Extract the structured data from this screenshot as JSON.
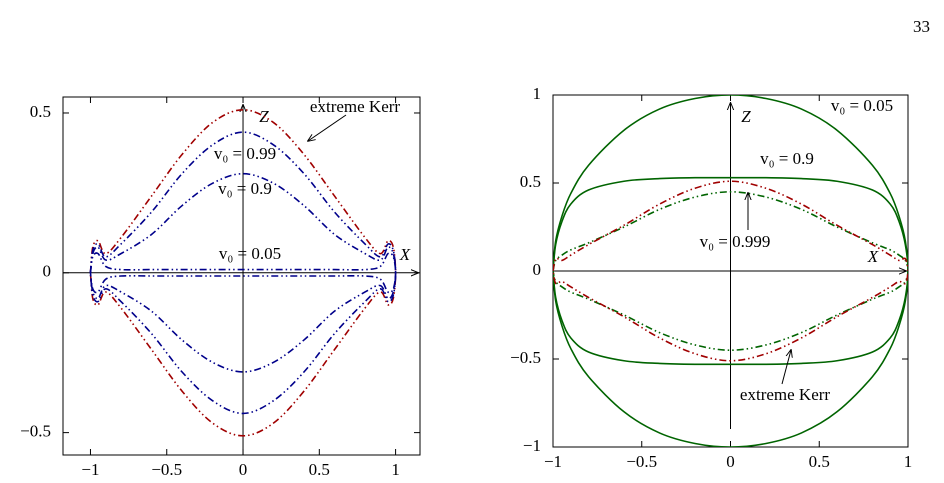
{
  "page_number": "33",
  "chart_data": [
    {
      "type": "line",
      "x": [
        -1,
        -0.985,
        -0.95,
        -0.9,
        -0.8,
        -0.6,
        -0.4,
        -0.2,
        0,
        0.2,
        0.4,
        0.6,
        0.8,
        0.9,
        0.95,
        0.985,
        1,
        0.985,
        0.95,
        0.9,
        0.8,
        0.6,
        0.4,
        0.2,
        0,
        -0.2,
        -0.4,
        -0.6,
        -0.8,
        -0.9,
        -0.95,
        -0.985,
        -1
      ],
      "xlim": [
        -1.18,
        1.16
      ],
      "ylim": [
        -0.57,
        0.55
      ],
      "xticks": [
        {
          "value": -1,
          "label": "−1"
        },
        {
          "value": -0.5,
          "label": "−0.5"
        },
        0,
        0.5,
        1
      ],
      "yticks": [
        {
          "value": -0.5,
          "label": "−0.5"
        },
        0,
        0.5
      ],
      "x_label": "X",
      "y_label": "Z",
      "series": [
        {
          "name": "extreme Kerr",
          "color": "#a00000",
          "linestyle": "dash-dot-dot",
          "values": [
            0,
            0.08,
            0.1,
            0.06,
            0.11,
            0.24,
            0.37,
            0.47,
            0.51,
            0.47,
            0.37,
            0.24,
            0.11,
            0.06,
            0.1,
            0.08,
            0,
            -0.08,
            -0.1,
            -0.06,
            -0.11,
            -0.24,
            -0.37,
            -0.47,
            -0.51,
            -0.47,
            -0.37,
            -0.24,
            -0.11,
            -0.06,
            -0.1,
            -0.08,
            0
          ]
        },
        {
          "name": "v₀ = 0.99",
          "color": "#00008b",
          "linestyle": "dash-dot-dot",
          "values": [
            0,
            0.07,
            0.09,
            0.05,
            0.09,
            0.19,
            0.31,
            0.4,
            0.44,
            0.4,
            0.31,
            0.19,
            0.09,
            0.05,
            0.09,
            0.07,
            0,
            -0.07,
            -0.09,
            -0.05,
            -0.09,
            -0.19,
            -0.31,
            -0.4,
            -0.44,
            -0.4,
            -0.31,
            -0.19,
            -0.09,
            -0.05,
            -0.09,
            -0.07,
            0
          ]
        },
        {
          "name": "v₀ = 0.9",
          "color": "#00008b",
          "linestyle": "dash-dot-dot",
          "values": [
            0,
            0.06,
            0.08,
            0.04,
            0.06,
            0.12,
            0.21,
            0.28,
            0.31,
            0.28,
            0.21,
            0.12,
            0.06,
            0.04,
            0.08,
            0.06,
            0,
            -0.06,
            -0.08,
            -0.04,
            -0.06,
            -0.12,
            -0.21,
            -0.28,
            -0.31,
            -0.28,
            -0.21,
            -0.12,
            -0.06,
            -0.04,
            -0.08,
            -0.06,
            0
          ]
        },
        {
          "name": "v₀ = 0.05",
          "color": "#00008b",
          "linestyle": "dash-dot-dot",
          "values": [
            0,
            0.05,
            0.06,
            0.02,
            0.01,
            0.01,
            0.01,
            0.01,
            0.01,
            0.01,
            0.01,
            0.01,
            0.01,
            0.02,
            0.06,
            0.05,
            0,
            -0.05,
            -0.06,
            -0.02,
            -0.01,
            -0.01,
            -0.01,
            -0.01,
            -0.01,
            -0.01,
            -0.01,
            -0.01,
            -0.01,
            -0.02,
            -0.06,
            -0.05,
            0
          ]
        }
      ]
    },
    {
      "type": "line",
      "x": [
        -1,
        -0.985,
        -0.95,
        -0.9,
        -0.8,
        -0.6,
        -0.4,
        -0.2,
        0,
        0.2,
        0.4,
        0.6,
        0.8,
        0.9,
        0.95,
        0.985,
        1,
        0.985,
        0.95,
        0.9,
        0.8,
        0.6,
        0.4,
        0.2,
        0,
        -0.2,
        -0.4,
        -0.6,
        -0.8,
        -0.9,
        -0.95,
        -0.985,
        -1
      ],
      "xlim": [
        -1,
        1
      ],
      "ylim": [
        -1,
        1
      ],
      "xticks": [
        {
          "value": -1,
          "label": "−1"
        },
        {
          "value": -0.5,
          "label": "−0.5"
        },
        0,
        0.5,
        1
      ],
      "yticks": [
        {
          "value": -1,
          "label": "−1"
        },
        {
          "value": -0.5,
          "label": "−0.5"
        },
        0,
        0.5,
        1
      ],
      "x_label": "X",
      "y_label": "Z",
      "series": [
        {
          "name": "v₀ = 0.05",
          "color": "#006400",
          "linestyle": "solid",
          "values": [
            0,
            0.17,
            0.31,
            0.44,
            0.6,
            0.8,
            0.92,
            0.98,
            1,
            0.98,
            0.92,
            0.8,
            0.6,
            0.44,
            0.31,
            0.17,
            0,
            -0.17,
            -0.31,
            -0.44,
            -0.6,
            -0.8,
            -0.92,
            -0.98,
            -1,
            -0.98,
            -0.92,
            -0.8,
            -0.6,
            -0.44,
            -0.31,
            -0.17,
            0
          ]
        },
        {
          "name": "v₀ = 0.9",
          "color": "#006400",
          "linestyle": "solid",
          "values": [
            0,
            0.15,
            0.28,
            0.38,
            0.46,
            0.51,
            0.525,
            0.53,
            0.53,
            0.53,
            0.525,
            0.51,
            0.46,
            0.38,
            0.28,
            0.15,
            0,
            -0.15,
            -0.28,
            -0.38,
            -0.46,
            -0.51,
            -0.525,
            -0.53,
            -0.53,
            -0.53,
            -0.525,
            -0.51,
            -0.46,
            -0.38,
            -0.28,
            -0.15,
            0
          ]
        },
        {
          "name": "v₀ = 0.999",
          "color": "#006400",
          "linestyle": "dash-dot-dot",
          "values": [
            0,
            0.06,
            0.09,
            0.12,
            0.16,
            0.25,
            0.35,
            0.42,
            0.45,
            0.42,
            0.35,
            0.25,
            0.16,
            0.12,
            0.09,
            0.06,
            0,
            -0.06,
            -0.09,
            -0.12,
            -0.16,
            -0.25,
            -0.35,
            -0.42,
            -0.45,
            -0.42,
            -0.35,
            -0.25,
            -0.16,
            -0.12,
            -0.09,
            -0.06,
            0
          ]
        },
        {
          "name": "extreme Kerr",
          "color": "#a00000",
          "linestyle": "dash-dot-dot",
          "values": [
            0,
            0.07,
            0.06,
            0.09,
            0.15,
            0.26,
            0.38,
            0.47,
            0.51,
            0.47,
            0.38,
            0.26,
            0.15,
            0.09,
            0.06,
            0.07,
            0,
            -0.07,
            -0.06,
            -0.09,
            -0.15,
            -0.26,
            -0.38,
            -0.47,
            -0.51,
            -0.47,
            -0.38,
            -0.26,
            -0.15,
            -0.09,
            -0.06,
            -0.07,
            0
          ]
        }
      ]
    }
  ]
}
